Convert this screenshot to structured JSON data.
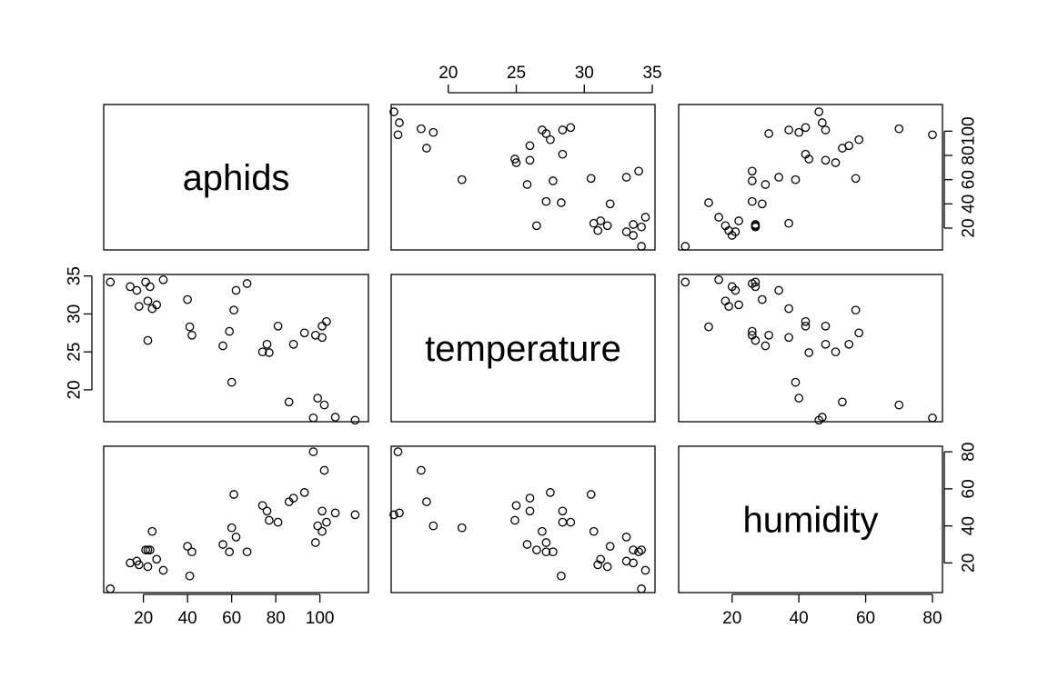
{
  "chart_data": {
    "type": "scatter",
    "title": "",
    "layout": "scatterplot-matrix",
    "variables": [
      "aphids",
      "temperature",
      "humidity"
    ],
    "axes": {
      "aphids": {
        "range": [
          2,
          122
        ],
        "ticks": [
          20,
          40,
          60,
          80,
          100
        ]
      },
      "temperature": {
        "range": [
          15.8,
          35.2
        ],
        "ticks": [
          20,
          25,
          30,
          35
        ]
      },
      "humidity": {
        "range": [
          4,
          83
        ],
        "ticks": [
          20,
          40,
          60,
          80
        ]
      }
    },
    "data": {
      "aphids": [
        5,
        14,
        17,
        18,
        21,
        22,
        22,
        23,
        24,
        26,
        29,
        40,
        41,
        42,
        56,
        59,
        60,
        61,
        62,
        67,
        74,
        76,
        77,
        81,
        86,
        88,
        93,
        97,
        98,
        99,
        101,
        101,
        102,
        103,
        107,
        116
      ],
      "temperature": [
        34.2,
        33.6,
        33.1,
        31.0,
        34.2,
        31.7,
        26.5,
        33.6,
        30.7,
        31.2,
        34.5,
        31.9,
        28.3,
        27.2,
        25.8,
        27.7,
        21.0,
        30.5,
        33.1,
        34.0,
        25.0,
        26.0,
        24.9,
        28.4,
        18.4,
        26.0,
        27.5,
        16.3,
        27.2,
        18.9,
        28.4,
        26.9,
        18.0,
        29.0,
        16.4,
        16.0
      ],
      "humidity": [
        6,
        20,
        21,
        19,
        27,
        18,
        27,
        27,
        37,
        22,
        16,
        29,
        13,
        26,
        30,
        26,
        39,
        57,
        34,
        26,
        51,
        48,
        43,
        42,
        53,
        55,
        58,
        80,
        31,
        40,
        48,
        37,
        70,
        42,
        47,
        46
      ]
    }
  }
}
